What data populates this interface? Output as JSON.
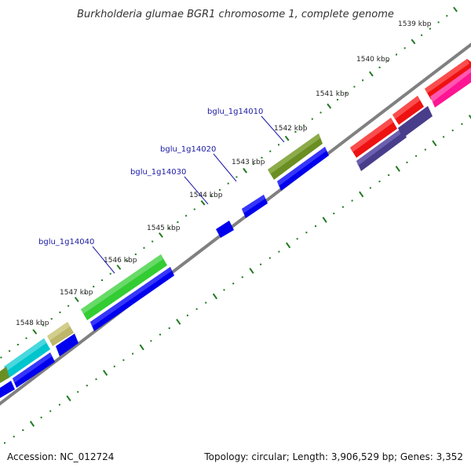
{
  "title": "Burkholderia glumae BGR1 chromosome 1, complete genome",
  "footer": {
    "accession": "Accession: NC_012724",
    "stats": "Topology: circular; Length: 3,906,529 bp; Genes: 3,352"
  },
  "scale_labels": [
    "1539 kbp",
    "1540 kbp",
    "1541 kbp",
    "1542 kbp",
    "1543 kbp",
    "1544 kbp",
    "1545 kbp",
    "1546 kbp",
    "1547 kbp",
    "1548 kbp"
  ],
  "gene_labels": [
    "bglu_1g14010",
    "bglu_1g14020",
    "bglu_1g14030",
    "bglu_1g14040"
  ],
  "colors": {
    "backbone": "#808080",
    "tick": "#1f7a1f",
    "cds_blue": "#0000ee",
    "olive": "#6b8e23",
    "green": "#33cc33",
    "khaki": "#bdb76b",
    "cyan": "#00c5cd",
    "red": "#ee1111",
    "magenta": "#ff1493",
    "slate": "#483d8b"
  }
}
